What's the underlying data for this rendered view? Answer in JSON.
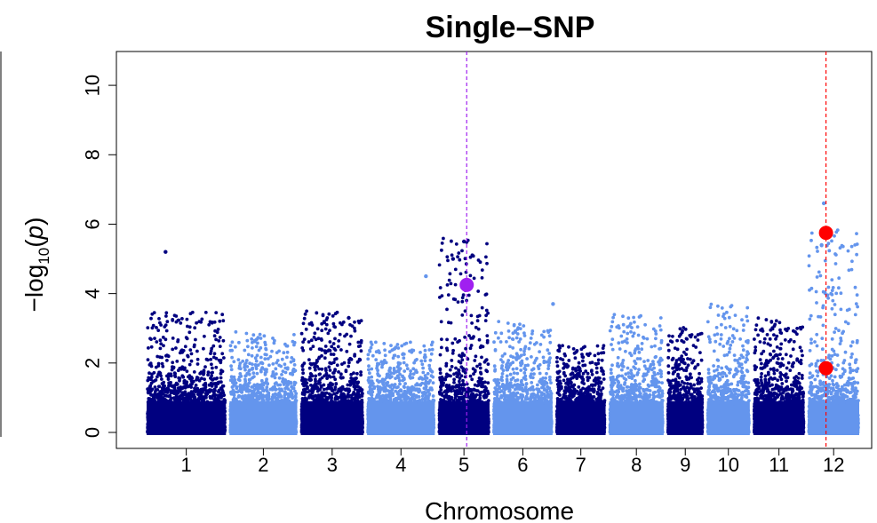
{
  "chart_data": {
    "type": "scatter",
    "subtype": "manhattan",
    "title": "Single–SNP",
    "xlabel": "Chromosome",
    "ylabel_prefix": "−log",
    "ylabel_sub": "10",
    "ylabel_var": "p",
    "ylim": [
      0,
      11
    ],
    "yticks": [
      0,
      2,
      4,
      6,
      8,
      10
    ],
    "grid": false,
    "legend": "none",
    "colors": {
      "odd": "#000080",
      "even": "#6495ED",
      "highlight_purple": "#A020F0",
      "highlight_red": "#FF0000"
    },
    "chromosomes": [
      {
        "label": "1",
        "span": 1.0,
        "peak": 3.5,
        "spikes": [
          {
            "pos": 0.25,
            "y": 5.2
          }
        ]
      },
      {
        "label": "2",
        "span": 0.86,
        "peak": 2.9,
        "spikes": []
      },
      {
        "label": "3",
        "span": 0.8,
        "peak": 3.5,
        "spikes": [
          {
            "pos": 0.75,
            "y": 3.3
          }
        ]
      },
      {
        "label": "4",
        "span": 0.86,
        "peak": 2.6,
        "spikes": [
          {
            "pos": 0.85,
            "y": 4.5
          }
        ]
      },
      {
        "label": "5",
        "span": 0.66,
        "peak": 5.6,
        "spikes": [
          {
            "pos": 0.5,
            "y": 5.5
          },
          {
            "pos": 0.3,
            "y": 5.0
          }
        ]
      },
      {
        "label": "6",
        "span": 0.76,
        "peak": 3.2,
        "spikes": [
          {
            "pos": 0.98,
            "y": 3.7
          }
        ]
      },
      {
        "label": "7",
        "span": 0.64,
        "peak": 2.5,
        "spikes": []
      },
      {
        "label": "8",
        "span": 0.7,
        "peak": 3.4,
        "spikes": []
      },
      {
        "label": "9",
        "span": 0.48,
        "peak": 3.1,
        "spikes": []
      },
      {
        "label": "10",
        "span": 0.56,
        "peak": 3.7,
        "spikes": []
      },
      {
        "label": "11",
        "span": 0.66,
        "peak": 3.3,
        "spikes": []
      },
      {
        "label": "12",
        "span": 0.66,
        "peak": 5.9,
        "spikes": [
          {
            "pos": 0.32,
            "y": 6.6
          },
          {
            "pos": 0.28,
            "y": 5.4
          }
        ]
      }
    ],
    "highlights": [
      {
        "chrom": "5",
        "pos": 0.55,
        "y": 4.25,
        "color": "purple"
      },
      {
        "chrom": "12",
        "pos": 0.36,
        "y": 5.75,
        "color": "red"
      },
      {
        "chrom": "12",
        "pos": 0.36,
        "y": 1.85,
        "color": "red"
      }
    ],
    "vlines": [
      {
        "chrom": "5",
        "pos": 0.55,
        "color": "purple"
      },
      {
        "chrom": "12",
        "pos": 0.36,
        "color": "red"
      }
    ]
  }
}
